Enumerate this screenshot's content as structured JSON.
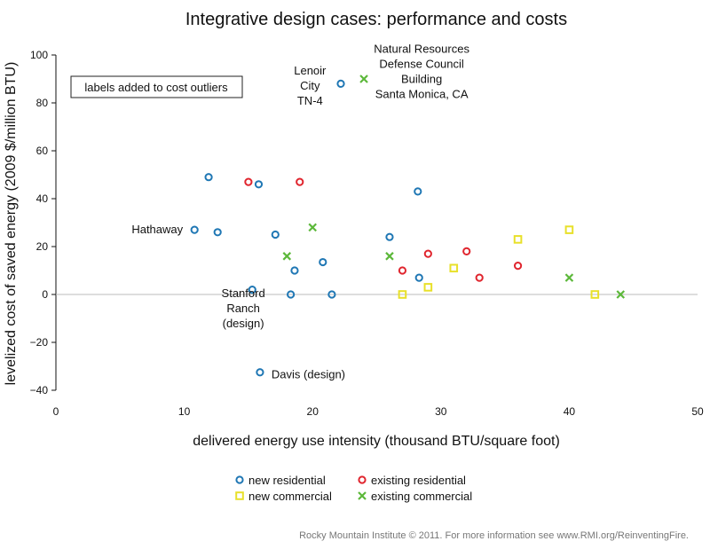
{
  "chart_data": {
    "type": "scatter",
    "title": "Integrative design cases: performance and costs",
    "xlabel": "delivered energy use intensity (thousand BTU/square foot)",
    "ylabel": "levelized cost of saved energy (2009 $/million BTU)",
    "xlim": [
      0,
      50
    ],
    "ylim": [
      -40,
      100
    ],
    "xticks": [
      0,
      10,
      20,
      30,
      40,
      50
    ],
    "yticks": [
      -40,
      -20,
      0,
      20,
      40,
      60,
      80,
      100
    ],
    "grid": false,
    "legend_position": "bottom",
    "series": [
      {
        "name": "new residential",
        "marker": "circle",
        "color": "#1f77b4",
        "points": [
          [
            11.9,
            49
          ],
          [
            15.8,
            46
          ],
          [
            28.2,
            43
          ],
          [
            10.8,
            27
          ],
          [
            12.6,
            26
          ],
          [
            17.1,
            25
          ],
          [
            26.0,
            24
          ],
          [
            20.8,
            13.5
          ],
          [
            18.6,
            10
          ],
          [
            28.3,
            7
          ],
          [
            15.3,
            2
          ],
          [
            18.3,
            0
          ],
          [
            21.5,
            0
          ],
          [
            22.2,
            88
          ],
          [
            15.9,
            -32.5
          ]
        ]
      },
      {
        "name": "existing residential",
        "marker": "circle",
        "color": "#e0252e",
        "points": [
          [
            15.0,
            47
          ],
          [
            19.0,
            47
          ],
          [
            32.0,
            18
          ],
          [
            29.0,
            17
          ],
          [
            36.0,
            12
          ],
          [
            27.0,
            10
          ],
          [
            33.0,
            7
          ]
        ]
      },
      {
        "name": "new commercial",
        "marker": "square",
        "color": "#e8e02a",
        "points": [
          [
            40.0,
            27
          ],
          [
            36.0,
            23
          ],
          [
            31.0,
            11
          ],
          [
            29.0,
            3
          ],
          [
            27.0,
            0
          ],
          [
            42.0,
            0
          ]
        ]
      },
      {
        "name": "existing commercial",
        "marker": "x",
        "color": "#5cb83a",
        "points": [
          [
            24.0,
            90
          ],
          [
            20.0,
            28
          ],
          [
            18.0,
            16
          ],
          [
            26.0,
            16
          ],
          [
            40.0,
            7
          ],
          [
            44.0,
            0
          ]
        ]
      }
    ],
    "annotations": [
      {
        "name": "lenoir-city",
        "lines": [
          "Lenoir",
          "City",
          "TN-4"
        ],
        "x": 19.8,
        "y": 87
      },
      {
        "name": "nrdc-building",
        "lines": [
          "Natural Resources",
          "Defense Council",
          "Building",
          "Santa Monica, CA"
        ],
        "x": 28.5,
        "y": 93
      },
      {
        "name": "hathaway",
        "lines": [
          "Hathaway"
        ],
        "x": 9.9,
        "y": 27
      },
      {
        "name": "stanford-ranch",
        "lines": [
          "Stanford",
          "Ranch",
          "(design)"
        ],
        "x": 14.6,
        "y": -6
      },
      {
        "name": "davis",
        "lines": [
          "Davis (design)"
        ],
        "x": 16.8,
        "y": -33.5
      }
    ],
    "note_box": "labels added to cost outliers"
  },
  "footer": "Rocky Mountain Institute © 2011. For more information see www.RMI.org/ReinventingFire."
}
